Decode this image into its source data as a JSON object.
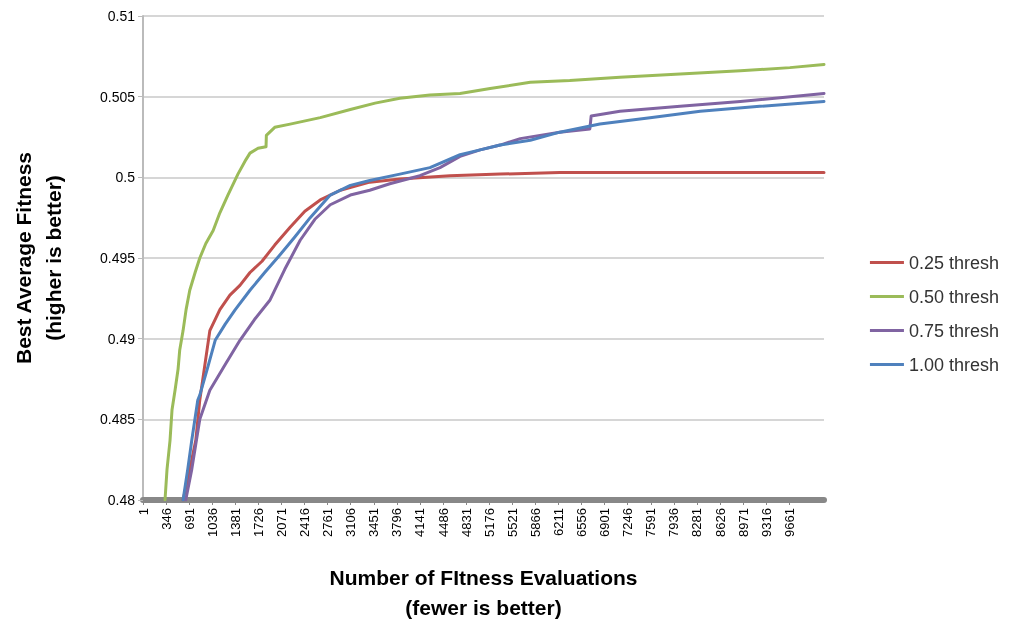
{
  "chart_data": {
    "type": "line",
    "xlabel": "Number of FItness Evaluations\n(fewer is better)",
    "ylabel": "Best Average Fitness\n(higher is better)",
    "xlim": [
      1,
      10180
    ],
    "xticks": [
      1,
      346,
      691,
      1036,
      1381,
      1726,
      2071,
      2416,
      2761,
      3106,
      3451,
      3796,
      4141,
      4486,
      4831,
      5176,
      5521,
      5866,
      6211,
      6556,
      6901,
      7246,
      7591,
      7936,
      8281,
      8626,
      8971,
      9316,
      9661
    ],
    "ylim": [
      0.48,
      0.51
    ],
    "yticks": [
      0.48,
      0.485,
      0.49,
      0.495,
      0.5,
      0.505,
      0.51
    ],
    "grid": "y",
    "legend": "right",
    "marker": "none",
    "line_style": "solid",
    "series": [
      {
        "name": "0.25 thresh",
        "color": "#c0504d",
        "x": [
          600,
          700,
          790,
          850,
          1000,
          1150,
          1300,
          1450,
          1600,
          1780,
          1970,
          2200,
          2420,
          2650,
          2950,
          3390,
          3840,
          4590,
          5340,
          6230,
          8330,
          10180
        ],
        "values": [
          0.48,
          0.4819,
          0.4837,
          0.4862,
          0.4905,
          0.4918,
          0.4927,
          0.4933,
          0.4941,
          0.4948,
          0.4958,
          0.4969,
          0.4979,
          0.4986,
          0.4992,
          0.4997,
          0.4999,
          0.5001,
          0.5002,
          0.5003,
          0.5003,
          0.5003
        ]
      },
      {
        "name": "0.50 thresh",
        "color": "#9bbb59",
        "x": [
          330,
          360,
          405,
          435,
          480,
          525,
          550,
          600,
          645,
          700,
          780,
          850,
          940,
          1050,
          1150,
          1270,
          1420,
          1540,
          1600,
          1720,
          1840,
          1845,
          1970,
          2200,
          2650,
          3100,
          3470,
          3840,
          4290,
          4740,
          5190,
          5790,
          6380,
          7130,
          8030,
          8930,
          9670,
          10180
        ],
        "values": [
          0.48,
          0.4819,
          0.4837,
          0.4856,
          0.4868,
          0.4881,
          0.4893,
          0.4905,
          0.4918,
          0.493,
          0.4941,
          0.495,
          0.4959,
          0.4967,
          0.4978,
          0.4989,
          0.5002,
          0.5011,
          0.5015,
          0.5018,
          0.5019,
          0.5026,
          0.5031,
          0.5033,
          0.5037,
          0.5042,
          0.5046,
          0.5049,
          0.5051,
          0.5052,
          0.5055,
          0.5059,
          0.506,
          0.5062,
          0.5064,
          0.5066,
          0.5068,
          0.507
        ]
      },
      {
        "name": "0.75 thresh",
        "color": "#8064a2",
        "x": [
          640,
          730,
          850,
          1000,
          1230,
          1450,
          1670,
          1900,
          2120,
          2350,
          2570,
          2800,
          3100,
          3390,
          3690,
          4140,
          4440,
          4740,
          5040,
          5340,
          5640,
          6230,
          6680,
          6700,
          7130,
          8030,
          8930,
          10180
        ],
        "values": [
          0.48,
          0.4819,
          0.485,
          0.4868,
          0.4884,
          0.4899,
          0.4912,
          0.4924,
          0.4943,
          0.4961,
          0.4974,
          0.4983,
          0.4989,
          0.4992,
          0.4996,
          0.5001,
          0.5006,
          0.5013,
          0.5017,
          0.502,
          0.5024,
          0.5028,
          0.503,
          0.5038,
          0.5041,
          0.5044,
          0.5047,
          0.5052
        ]
      },
      {
        "name": "1.00 thresh",
        "color": "#4f81bd",
        "x": [
          600,
          670,
          730,
          820,
          850,
          960,
          1080,
          1230,
          1380,
          1600,
          1820,
          2050,
          2270,
          2500,
          2800,
          3100,
          3390,
          3840,
          4290,
          4740,
          5040,
          5340,
          5790,
          6230,
          6830,
          7580,
          8330,
          9220,
          10180
        ],
        "values": [
          0.48,
          0.4819,
          0.4837,
          0.4862,
          0.4865,
          0.4881,
          0.4899,
          0.4909,
          0.4918,
          0.493,
          0.4941,
          0.4952,
          0.4963,
          0.4975,
          0.4989,
          0.4995,
          0.4998,
          0.5002,
          0.5006,
          0.5014,
          0.5017,
          0.502,
          0.5023,
          0.5028,
          0.5033,
          0.5037,
          0.5041,
          0.5044,
          0.5047
        ]
      }
    ]
  }
}
